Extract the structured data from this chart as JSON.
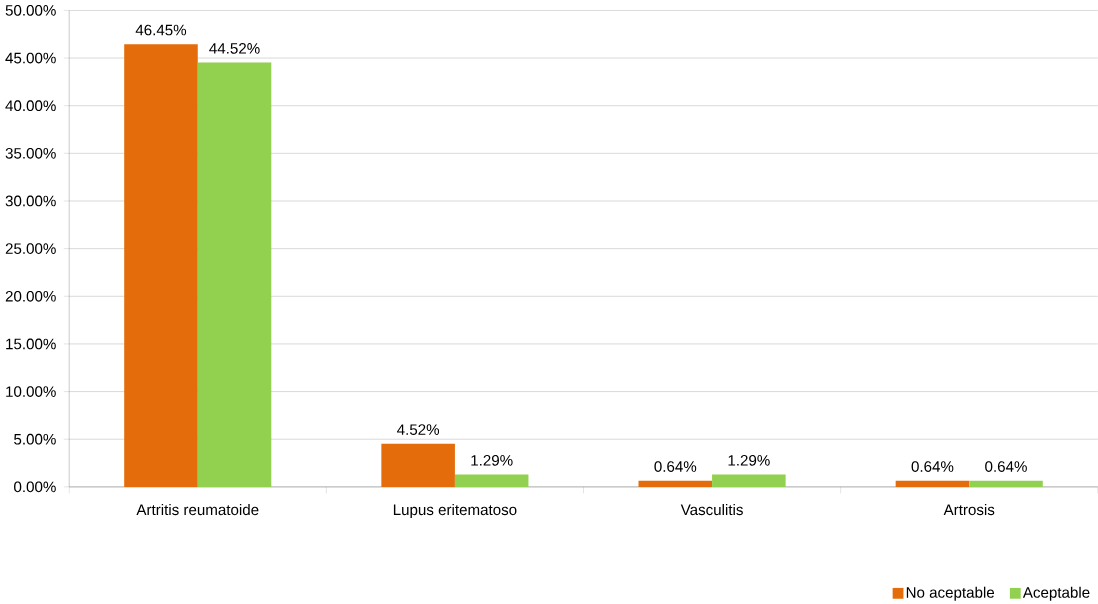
{
  "chart_data": {
    "type": "bar",
    "categories": [
      "Artritis reumatoide",
      "Lupus eritematoso",
      "Vasculitis",
      "Artrosis"
    ],
    "series": [
      {
        "name": "No aceptable",
        "color": "#e46c0a",
        "values": [
          46.45,
          4.52,
          0.64,
          0.64
        ],
        "value_labels": [
          "46.45%",
          "4.52%",
          "0.64%",
          "0.64%"
        ]
      },
      {
        "name": "Aceptable",
        "color": "#92d050",
        "values": [
          44.52,
          1.29,
          1.29,
          0.64
        ],
        "value_labels": [
          "44.52%",
          "1.29%",
          "1.29%",
          "0.64%"
        ]
      }
    ],
    "ylim": [
      0,
      50
    ],
    "yticks": [
      {
        "value": 0,
        "label": "0.00%"
      },
      {
        "value": 5,
        "label": "5.00%"
      },
      {
        "value": 10,
        "label": "10.00%"
      },
      {
        "value": 15,
        "label": "15.00%"
      },
      {
        "value": 20,
        "label": "20.00%"
      },
      {
        "value": 25,
        "label": "25.00%"
      },
      {
        "value": 30,
        "label": "30.00%"
      },
      {
        "value": 35,
        "label": "35.00%"
      },
      {
        "value": 40,
        "label": "40.00%"
      },
      {
        "value": 45,
        "label": "45.00%"
      },
      {
        "value": 50,
        "label": "50.00%"
      }
    ],
    "grid": "y",
    "legend": "bottom right"
  }
}
